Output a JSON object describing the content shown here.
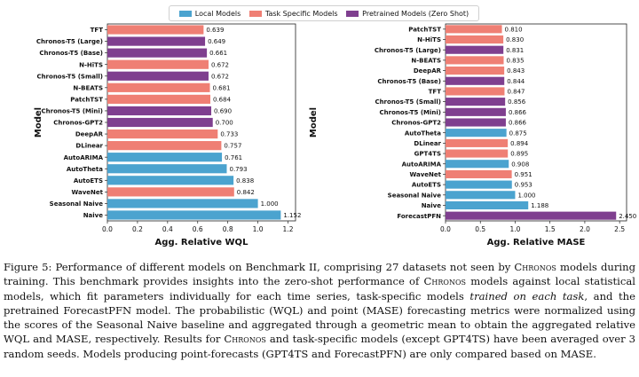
{
  "legend": {
    "local": {
      "label": "Local Models",
      "color": "#4ba3cf"
    },
    "task": {
      "label": "Task Specific Models",
      "color": "#ef7f74"
    },
    "pretrained": {
      "label": "Pretrained Models (Zero Shot)",
      "color": "#7f3f8f"
    }
  },
  "chart_data": [
    {
      "type": "bar",
      "orientation": "horizontal",
      "xlabel": "Agg. Relative WQL",
      "ylabel": "Model",
      "xlim": [
        0,
        1.25
      ],
      "xticks": [
        "0.0",
        "0.2",
        "0.4",
        "0.6",
        "0.8",
        "1.0",
        "1.2"
      ],
      "categories": [
        "TFT",
        "Chronos-T5 (Large)",
        "Chronos-T5 (Base)",
        "N-HiTS",
        "Chronos-T5 (Small)",
        "N-BEATS",
        "PatchTST",
        "Chronos-T5 (Mini)",
        "Chronos-GPT2",
        "DeepAR",
        "DLinear",
        "AutoARIMA",
        "AutoTheta",
        "AutoETS",
        "WaveNet",
        "Seasonal Naive",
        "Naive"
      ],
      "values": [
        0.639,
        0.649,
        0.661,
        0.672,
        0.672,
        0.681,
        0.684,
        0.69,
        0.7,
        0.733,
        0.757,
        0.761,
        0.793,
        0.838,
        0.842,
        1.0,
        1.152
      ],
      "labels": [
        "0.639",
        "0.649",
        "0.661",
        "0.672",
        "0.672",
        "0.681",
        "0.684",
        "0.690",
        "0.700",
        "0.733",
        "0.757",
        "0.761",
        "0.793",
        "0.838",
        "0.842",
        "1.000",
        "1.152"
      ],
      "groups": [
        "task",
        "pretrained",
        "pretrained",
        "task",
        "pretrained",
        "task",
        "task",
        "pretrained",
        "pretrained",
        "task",
        "task",
        "local",
        "local",
        "local",
        "task",
        "local",
        "local"
      ]
    },
    {
      "type": "bar",
      "orientation": "horizontal",
      "xlabel": "Agg. Relative MASE",
      "ylabel": "Model",
      "xlim": [
        0,
        2.6
      ],
      "xticks": [
        "0.0",
        "0.5",
        "1.0",
        "1.5",
        "2.0",
        "2.5"
      ],
      "categories": [
        "PatchTST",
        "N-HiTS",
        "Chronos-T5 (Large)",
        "N-BEATS",
        "DeepAR",
        "Chronos-T5 (Base)",
        "TFT",
        "Chronos-T5 (Small)",
        "Chronos-T5 (Mini)",
        "Chronos-GPT2",
        "AutoTheta",
        "DLinear",
        "GPT4TS",
        "AutoARIMA",
        "WaveNet",
        "AutoETS",
        "Seasonal Naive",
        "Naive",
        "ForecastPFN"
      ],
      "values": [
        0.81,
        0.83,
        0.831,
        0.835,
        0.843,
        0.844,
        0.847,
        0.856,
        0.866,
        0.866,
        0.875,
        0.894,
        0.895,
        0.908,
        0.951,
        0.953,
        1.0,
        1.188,
        2.45
      ],
      "labels": [
        "0.810",
        "0.830",
        "0.831",
        "0.835",
        "0.843",
        "0.844",
        "0.847",
        "0.856",
        "0.866",
        "0.866",
        "0.875",
        "0.894",
        "0.895",
        "0.908",
        "0.951",
        "0.953",
        "1.000",
        "1.188",
        "2.450"
      ],
      "groups": [
        "task",
        "task",
        "pretrained",
        "task",
        "task",
        "pretrained",
        "task",
        "pretrained",
        "pretrained",
        "pretrained",
        "local",
        "task",
        "task",
        "local",
        "task",
        "local",
        "local",
        "local",
        "pretrained"
      ]
    }
  ],
  "caption": {
    "p1": "Figure 5: Performance of different models on Benchmark II, comprising 27 datasets not seen by ",
    "chronos1": "Chronos",
    "p2": " models during training. This benchmark provides insights into the zero-shot performance of ",
    "chronos2": "Chronos",
    "p3": " models against local statistical models, which fit parameters individually for each time series, task-specific models ",
    "italic": "trained on each task",
    "p4": ", and the pretrained ForecastPFN model. The probabilistic (WQL) and point (MASE) forecasting metrics were normalized using the scores of the Seasonal Naive baseline and aggregated through a geometric mean to obtain the aggregated relative WQL and MASE, respectively. Results for ",
    "chronos3": "Chronos",
    "p5": " and task-specific models (except GPT4TS) have been averaged over 3 random seeds. Models producing point-forecasts (GPT4TS and ForecastPFN) are only compared based on MASE."
  }
}
